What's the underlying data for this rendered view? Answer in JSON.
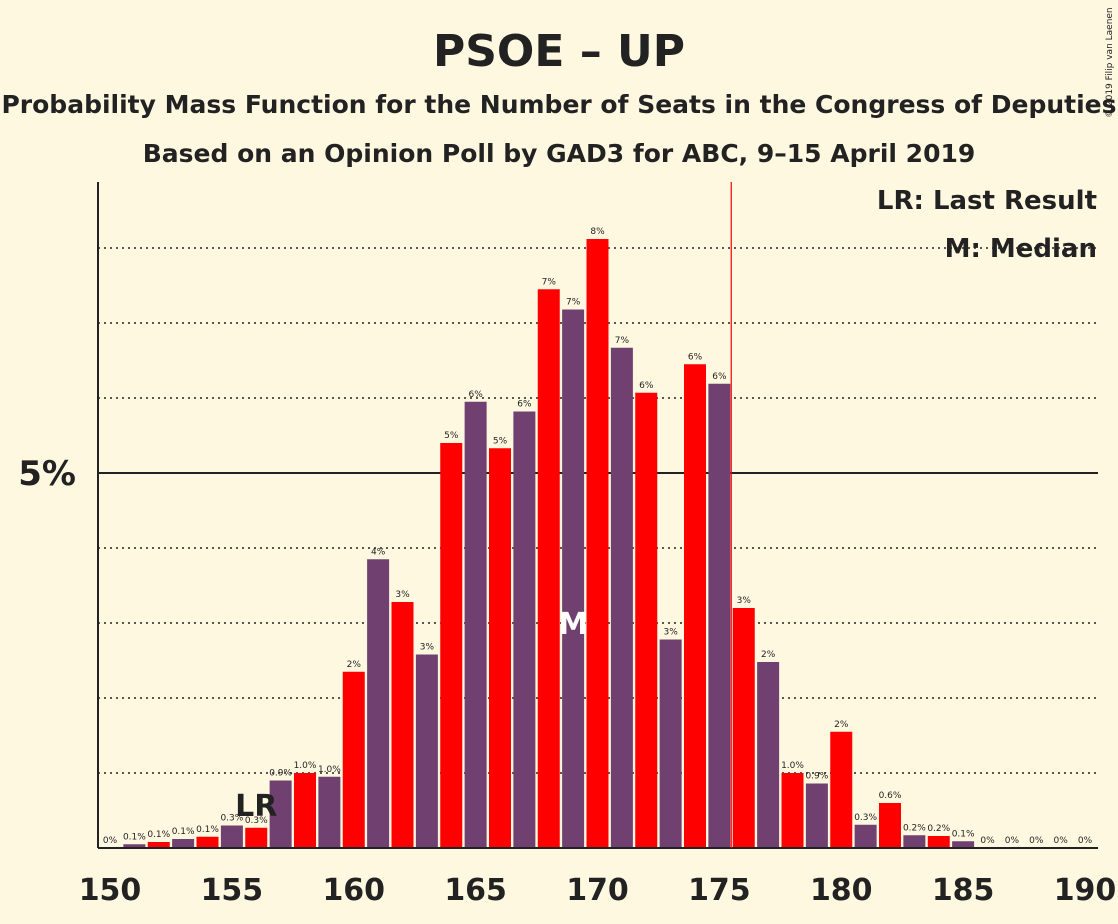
{
  "title": "PSOE – UP",
  "subtitle1": "Probability Mass Function for the Number of Seats in the Congress of Deputies",
  "subtitle2": "Based on an Opinion Poll by GAD3 for ABC, 9–15 April 2019",
  "copyright": "© 2019 Filip van Laenen",
  "legend": {
    "last_result": "LR: Last Result",
    "median": "M: Median"
  },
  "colors": {
    "red": "#FF0000",
    "purple": "#704070",
    "background": "#FFF8E1",
    "text": "#222222"
  },
  "chart_data": {
    "type": "bar",
    "x": [
      150,
      151,
      152,
      153,
      154,
      155,
      156,
      157,
      158,
      159,
      160,
      161,
      162,
      163,
      164,
      165,
      166,
      167,
      168,
      169,
      170,
      171,
      172,
      173,
      174,
      175,
      176,
      177,
      178,
      179,
      180,
      181,
      182,
      183,
      184,
      185,
      186,
      187,
      188,
      189,
      190
    ],
    "values": [
      0,
      0.05,
      0.08,
      0.12,
      0.15,
      0.3,
      0.27,
      0.9,
      1.0,
      0.95,
      2.35,
      3.85,
      3.28,
      2.58,
      5.4,
      5.95,
      5.33,
      5.82,
      7.45,
      7.18,
      8.12,
      6.67,
      6.07,
      2.78,
      6.45,
      6.19,
      3.2,
      2.48,
      1.0,
      0.86,
      1.55,
      0.31,
      0.6,
      0.17,
      0.16,
      0.09,
      0,
      0,
      0,
      0,
      0
    ],
    "labels": [
      "0%",
      "0.1%",
      "0.1%",
      "0.1%",
      "0.1%",
      "0.3%",
      "0.3%",
      "0.9%",
      "1.0%",
      "1.0%",
      "2%",
      "4%",
      "3%",
      "3%",
      "5%",
      "6%",
      "5%",
      "6%",
      "7%",
      "7%",
      "8%",
      "7%",
      "6%",
      "3%",
      "6%",
      "6%",
      "3%",
      "2%",
      "1.0%",
      "0.9%",
      "2%",
      "0.3%",
      "0.6%",
      "0.2%",
      "0.2%",
      "0.1%",
      "0%",
      "0%",
      "0%",
      "0%",
      "0%"
    ],
    "xticks": [
      150,
      155,
      160,
      165,
      170,
      175,
      180,
      185,
      190
    ],
    "ytick_label": "5%",
    "ytick_value": 5,
    "ylim": [
      0,
      8.8
    ],
    "gridlines": [
      1,
      2,
      3,
      4,
      6,
      7,
      8
    ],
    "last_result": 156,
    "last_result_label": "LR",
    "median": 169,
    "median_label": "M",
    "majority_line": 176
  }
}
